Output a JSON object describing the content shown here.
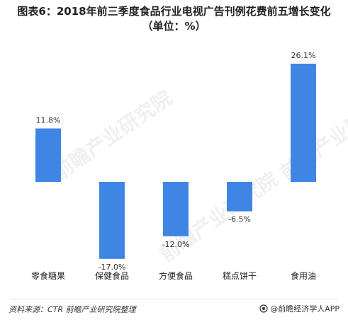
{
  "title_lines": [
    "图表6：2018年前三季度食品行业电视广告刊例花费前五增长变化",
    "（单位：%）"
  ],
  "source_text": "资料来源：CTR  前瞻产业研究院整理",
  "brand_text": "@前瞻经济学人APP",
  "watermark_text": "前瞻产业研究院",
  "colors": {
    "bar": "#3f86e4",
    "label": "#333333",
    "title": "#1f1f1f"
  },
  "chart_data": {
    "type": "bar",
    "title": "图表6：2018年前三季度食品行业电视广告刊例花费前五增长变化（单位：%）",
    "xlabel": "",
    "ylabel": "",
    "categories": [
      "零食糖果",
      "保健食品",
      "方便食品",
      "糕点饼干",
      "食用油"
    ],
    "values": [
      11.8,
      -17.0,
      -12.0,
      -6.5,
      26.1
    ],
    "value_labels": [
      "11.8%",
      "-17.0%",
      "-12.0%",
      "-6.5%",
      "26.1%"
    ],
    "unit": "%",
    "grid": false,
    "legend": "none"
  }
}
